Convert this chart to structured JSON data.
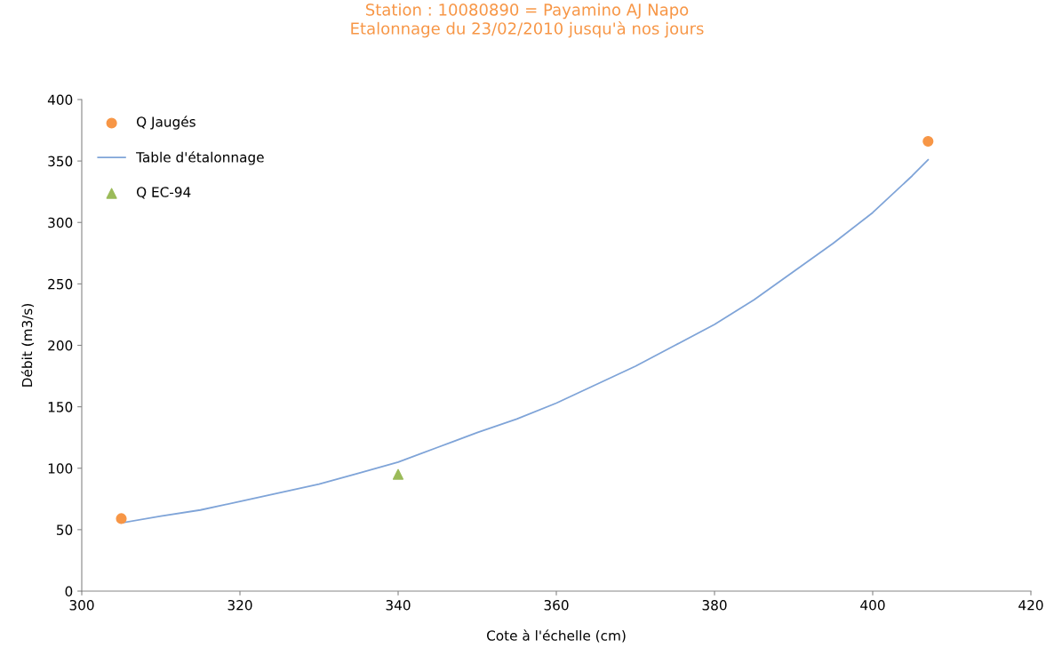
{
  "chart_data": {
    "type": "scatter",
    "title": "Station : 10080890 = Payamino AJ Napo\nEtalonnage du 23/02/2010 jusqu'à nos jours",
    "xlabel": "Cote à l'échelle (cm)",
    "ylabel": "Débit (m3/s)",
    "xlim": [
      300,
      420
    ],
    "xticks": [
      300,
      320,
      340,
      360,
      380,
      400,
      420
    ],
    "ylim": [
      0,
      400
    ],
    "yticks": [
      0,
      50,
      100,
      150,
      200,
      250,
      300,
      350,
      400
    ],
    "grid": false,
    "legend": "top left",
    "series": [
      {
        "name": "Q Jaugés",
        "marker": "circle",
        "color": "#f79646",
        "x": [
          305,
          407
        ],
        "values": [
          59,
          366
        ]
      },
      {
        "name": "Table d'étalonnage",
        "type": "line",
        "marker": "none",
        "color": "#7fa4d8",
        "x": [
          305,
          310,
          315,
          320,
          325,
          330,
          335,
          340,
          345,
          350,
          355,
          360,
          365,
          370,
          375,
          380,
          385,
          390,
          395,
          400,
          405,
          407
        ],
        "values": [
          55.5,
          61,
          66,
          73,
          80,
          87,
          96,
          105,
          117,
          129,
          140,
          153,
          168,
          183,
          200,
          217,
          237,
          260,
          283,
          308,
          338,
          351
        ]
      },
      {
        "name": "Q EC-94",
        "marker": "triangle",
        "color": "#9bbb59",
        "x": [
          340
        ],
        "values": [
          95
        ]
      }
    ]
  }
}
